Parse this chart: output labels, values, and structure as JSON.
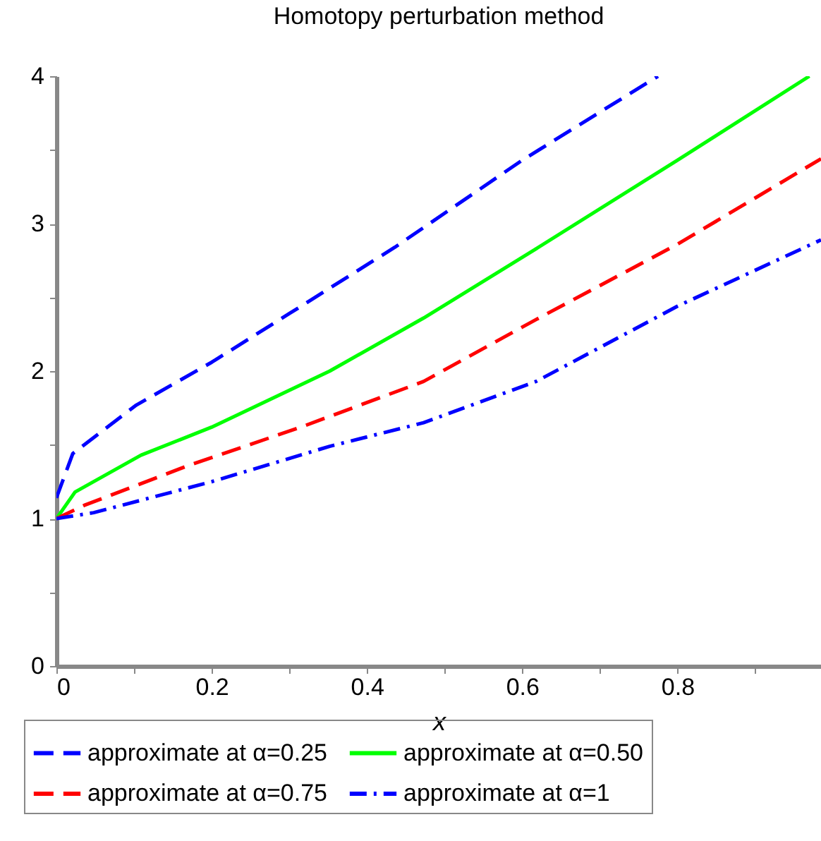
{
  "chart_data": {
    "type": "line",
    "title": "Homotopy perturbation method",
    "xlabel": "x",
    "xlim": [
      0,
      0.985
    ],
    "ylim": [
      0,
      4
    ],
    "xticks": [
      0,
      {
        "value": 0.1,
        "label": null
      },
      0.2,
      {
        "value": 0.3,
        "label": null
      },
      0.4,
      {
        "value": 0.5,
        "label": null
      },
      0.6,
      {
        "value": 0.7,
        "label": null
      },
      0.8,
      {
        "value": 0.9,
        "label": null
      }
    ],
    "yticks": [
      0,
      {
        "value": 0.5,
        "label": null
      },
      1,
      {
        "value": 1.5,
        "label": null
      },
      2,
      {
        "value": 2.5,
        "label": null
      },
      3,
      {
        "value": 3.5,
        "label": null
      },
      4
    ],
    "grid": false,
    "legend": "bottom",
    "series": [
      {
        "name": "approximate at α=0.25",
        "color": "#0000ff",
        "line_style": "dashed",
        "x": [
          0,
          0.021,
          0.103,
          0.2,
          0.3,
          0.436,
          0.6,
          0.775
        ],
        "values": [
          1.14,
          1.44,
          1.77,
          2.06,
          2.39,
          2.84,
          3.43,
          4.0
        ]
      },
      {
        "name": "approximate at α=0.50",
        "color": "#00ff00",
        "line_style": "solid",
        "x": [
          0,
          0.024,
          0.109,
          0.2,
          0.352,
          0.473,
          0.618,
          0.8,
          0.97
        ],
        "values": [
          1.0,
          1.18,
          1.43,
          1.62,
          2.0,
          2.36,
          2.83,
          3.43,
          4.0
        ]
      },
      {
        "name": "approximate at α=0.75",
        "color": "#ff0000",
        "line_style": "dashed",
        "x": [
          0,
          0.036,
          0.17,
          0.315,
          0.473,
          0.618,
          0.8,
          0.985
        ],
        "values": [
          1.0,
          1.09,
          1.36,
          1.62,
          1.93,
          2.35,
          2.86,
          3.44
        ]
      },
      {
        "name": "approximate at α=1",
        "color": "#0000ff",
        "line_style": "dashdot",
        "x": [
          0,
          0.048,
          0.2,
          0.352,
          0.473,
          0.618,
          0.8,
          0.985
        ],
        "values": [
          1.0,
          1.04,
          1.25,
          1.49,
          1.65,
          1.93,
          2.44,
          2.89
        ]
      }
    ]
  }
}
